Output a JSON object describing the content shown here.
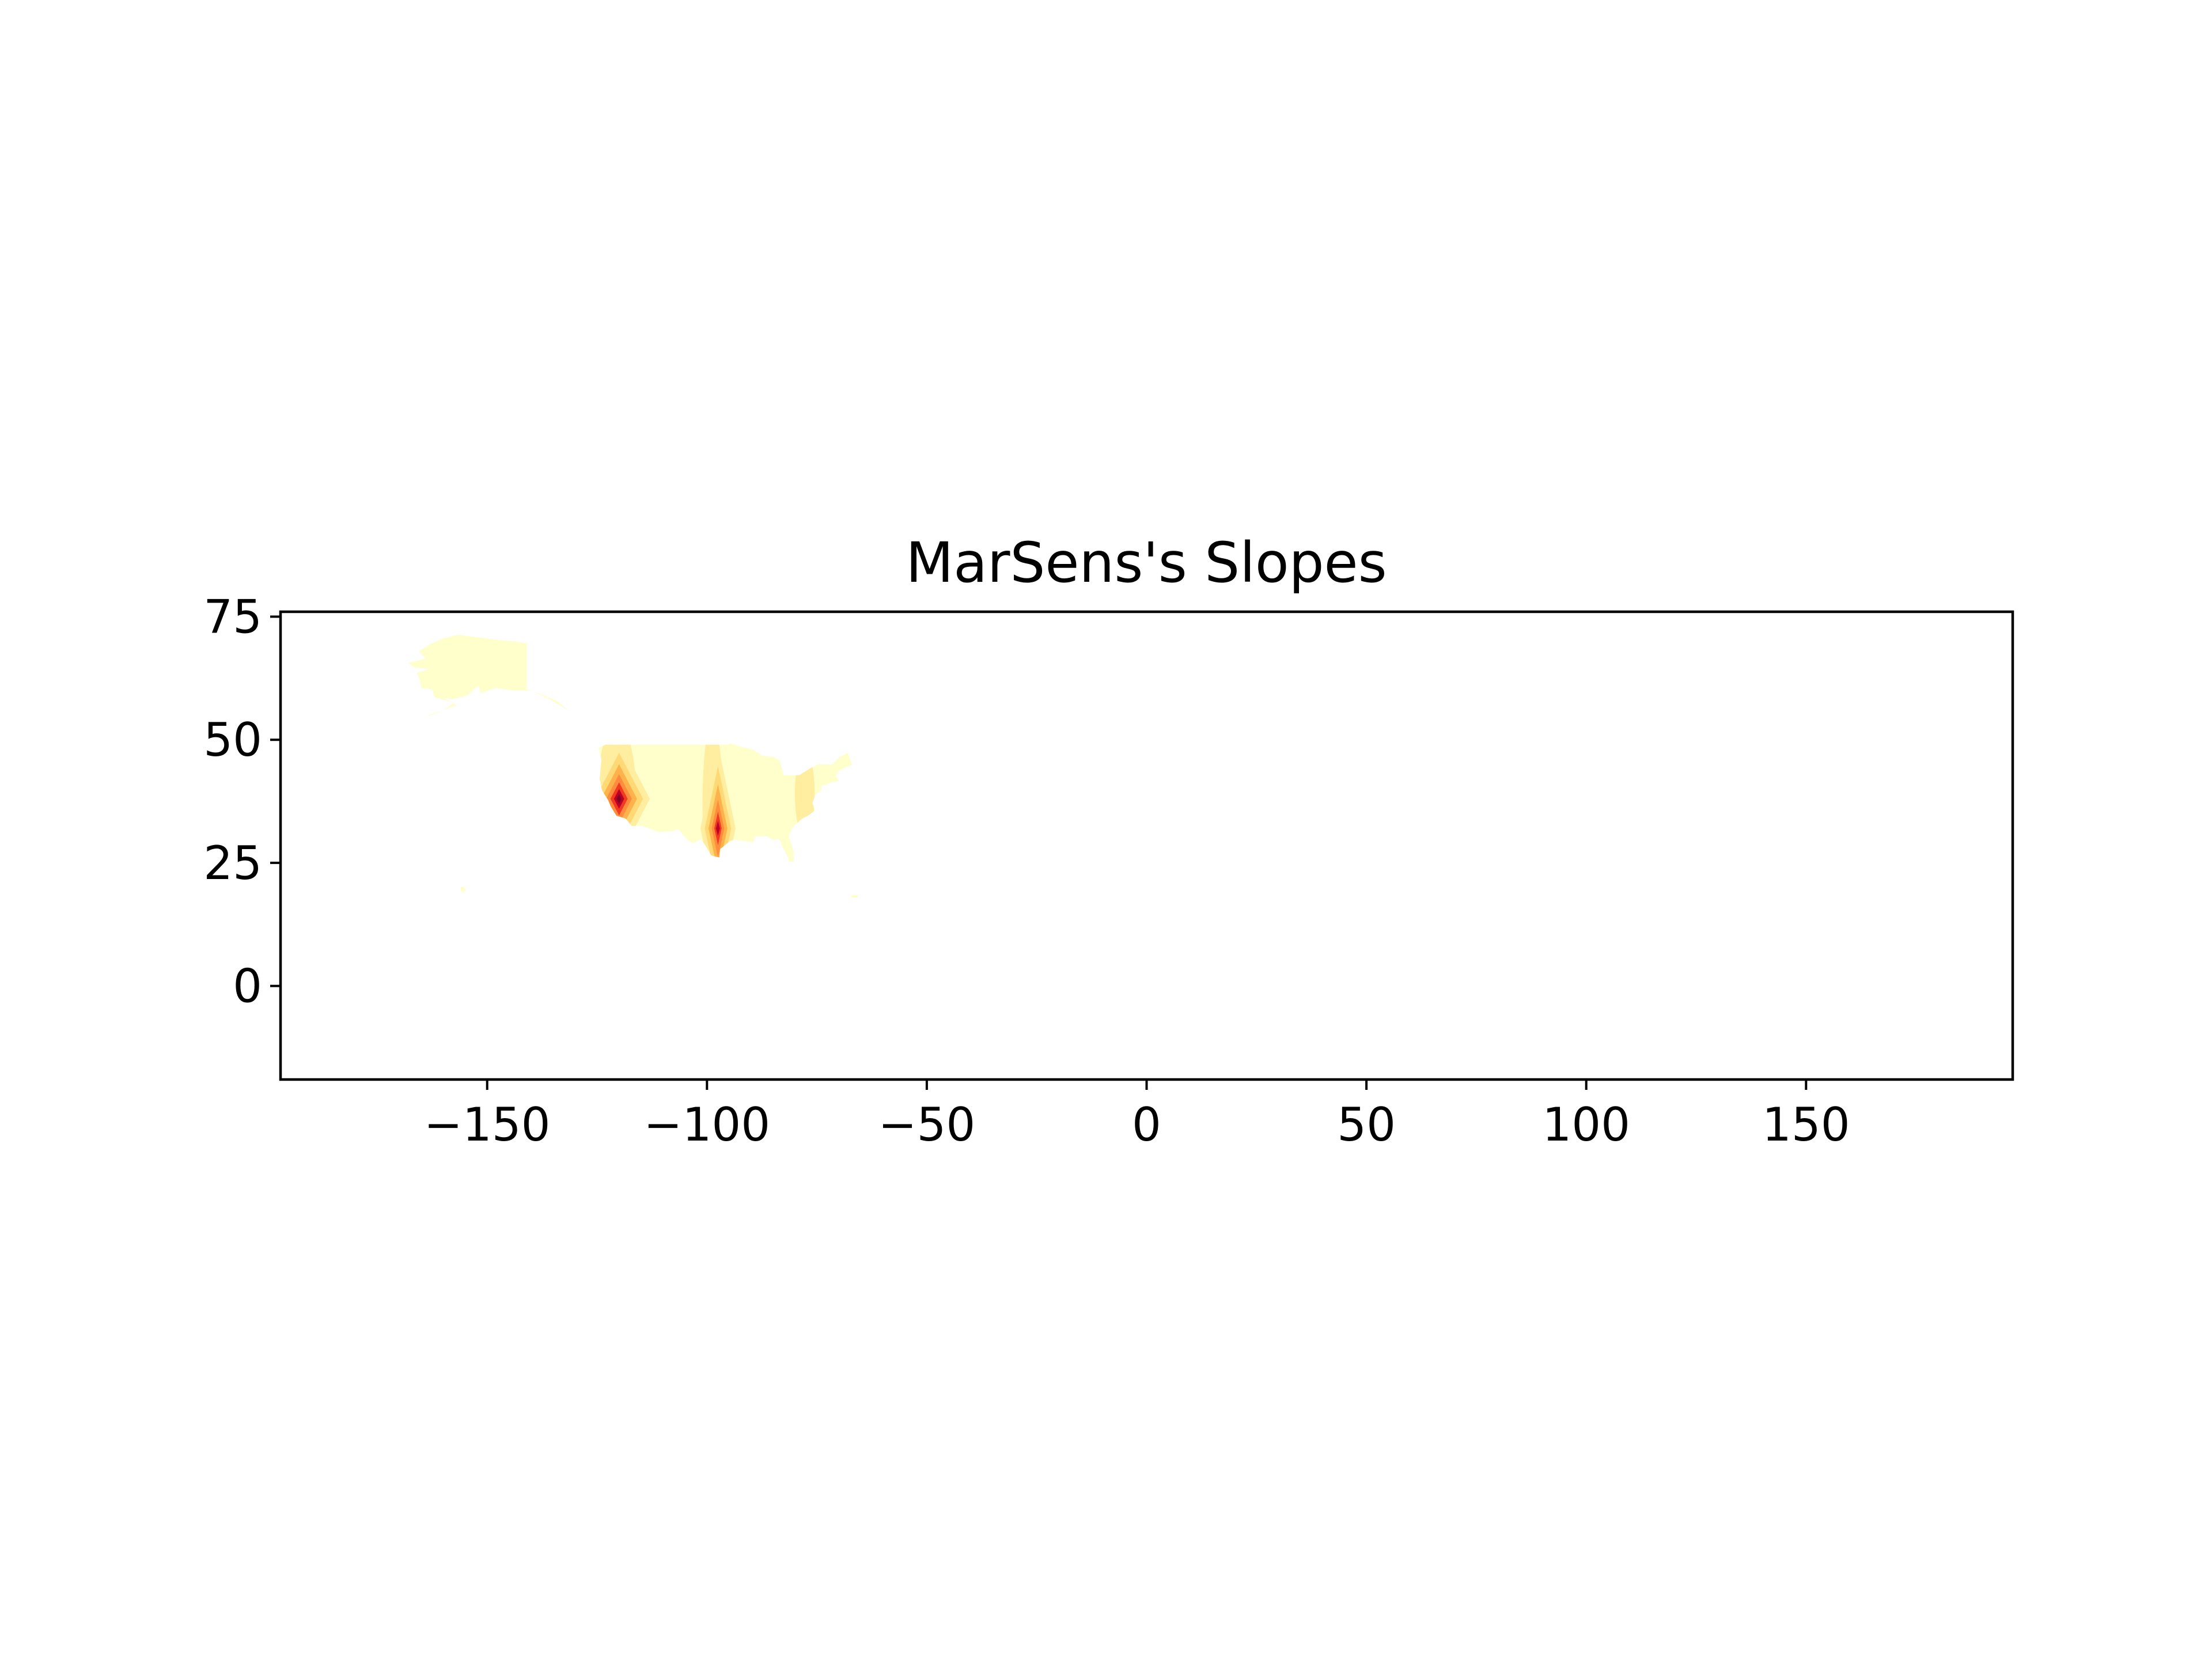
{
  "chart_data": {
    "type": "heatmap",
    "title": "MarSens's Slopes",
    "xlabel": "",
    "ylabel": "",
    "xlim": [
      -197,
      197
    ],
    "ylim": [
      -19,
      76
    ],
    "x_ticks": [
      -150,
      -100,
      -50,
      0,
      50,
      100,
      150
    ],
    "x_tick_labels": [
      "−150",
      "−100",
      "−50",
      "0",
      "50",
      "100",
      "150"
    ],
    "y_ticks": [
      0,
      25,
      50,
      75
    ],
    "y_tick_labels": [
      "0",
      "25",
      "50",
      "75"
    ],
    "grid": false,
    "colormap": "YlOrRd",
    "level_colors": [
      "#ffffcc",
      "#ffeda0",
      "#fed976",
      "#feb24c",
      "#fd8d3c",
      "#f03b20",
      "#bd0026",
      "#800026"
    ],
    "regions": {
      "alaska": {
        "name": "Alaska",
        "level": 0,
        "outline": [
          [
            -141,
            69.6
          ],
          [
            -141,
            60.3
          ],
          [
            -137,
            59
          ],
          [
            -134,
            57.8
          ],
          [
            -131,
            55.6
          ],
          [
            -132.5,
            56.5
          ],
          [
            -136,
            58.3
          ],
          [
            -140,
            60
          ],
          [
            -144,
            60
          ],
          [
            -148,
            60.5
          ],
          [
            -151.5,
            59.5
          ],
          [
            -152,
            61
          ],
          [
            -154.5,
            59
          ],
          [
            -158,
            58.2
          ],
          [
            -160,
            58.6
          ],
          [
            -157,
            57
          ],
          [
            -161,
            55.7
          ],
          [
            -164.5,
            54.6
          ],
          [
            -162,
            55.2
          ],
          [
            -160,
            56
          ],
          [
            -157.5,
            57.5
          ],
          [
            -162,
            58.6
          ],
          [
            -162.5,
            60.2
          ],
          [
            -165,
            60.5
          ],
          [
            -165.2,
            61.7
          ],
          [
            -166,
            63.6
          ],
          [
            -163,
            64.4
          ],
          [
            -166.5,
            64.6
          ],
          [
            -168,
            65.6
          ],
          [
            -164,
            66.5
          ],
          [
            -165.5,
            68
          ],
          [
            -163,
            69.4
          ],
          [
            -160,
            70.6
          ],
          [
            -156.6,
            71.3
          ],
          [
            -152,
            70.8
          ],
          [
            -148,
            70.3
          ],
          [
            -144,
            70
          ]
        ]
      },
      "conus": {
        "name": "Contiguous United States",
        "level": 0,
        "outline": [
          [
            -124.7,
            48.4
          ],
          [
            -123,
            49
          ],
          [
            -95.2,
            49
          ],
          [
            -94.8,
            49.3
          ],
          [
            -92,
            48.5
          ],
          [
            -89.5,
            48
          ],
          [
            -87.5,
            46.8
          ],
          [
            -84.8,
            46.5
          ],
          [
            -83.5,
            45.8
          ],
          [
            -82.5,
            42.8
          ],
          [
            -79,
            42.8
          ],
          [
            -76.5,
            44.2
          ],
          [
            -74.8,
            45
          ],
          [
            -71.5,
            45
          ],
          [
            -70,
            46.4
          ],
          [
            -68,
            47.4
          ],
          [
            -67,
            45
          ],
          [
            -70,
            43.7
          ],
          [
            -70.7,
            42.7
          ],
          [
            -70,
            41.7
          ],
          [
            -71.8,
            41.3
          ],
          [
            -74,
            40.6
          ],
          [
            -74,
            39.6
          ],
          [
            -75.3,
            38.9
          ],
          [
            -76,
            37.2
          ],
          [
            -75.5,
            35.6
          ],
          [
            -77,
            34.6
          ],
          [
            -78.5,
            33.9
          ],
          [
            -80.5,
            32.2
          ],
          [
            -81.4,
            30.5
          ],
          [
            -80.2,
            27
          ],
          [
            -80.3,
            25.3
          ],
          [
            -81.2,
            25.2
          ],
          [
            -81.8,
            26.5
          ],
          [
            -82.8,
            28.2
          ],
          [
            -83.5,
            29.8
          ],
          [
            -85,
            29.7
          ],
          [
            -86.5,
            30.4
          ],
          [
            -89,
            30.4
          ],
          [
            -89.5,
            29.2
          ],
          [
            -91.5,
            29.4
          ],
          [
            -93.8,
            29.7
          ],
          [
            -94.8,
            29.4
          ],
          [
            -97,
            27.8
          ],
          [
            -97.2,
            26.1
          ],
          [
            -99,
            26.5
          ],
          [
            -100.6,
            28.9
          ],
          [
            -101.5,
            29.8
          ],
          [
            -103,
            29
          ],
          [
            -104.4,
            29.6
          ],
          [
            -106.5,
            31.8
          ],
          [
            -108.2,
            31.4
          ],
          [
            -111,
            31.3
          ],
          [
            -114.8,
            32.5
          ],
          [
            -117.1,
            32.5
          ],
          [
            -118.5,
            34
          ],
          [
            -120.6,
            34.6
          ],
          [
            -121.9,
            36.5
          ],
          [
            -122.5,
            37.8
          ],
          [
            -123.8,
            39.6
          ],
          [
            -124.4,
            42
          ],
          [
            -124,
            46
          ],
          [
            -124.7,
            48.4
          ]
        ]
      },
      "hawaii": {
        "name": "Hawaii",
        "level": 0,
        "outline": [
          [
            -155.9,
            20.2
          ],
          [
            -155.2,
            19.9
          ],
          [
            -154.8,
            19.5
          ],
          [
            -155.6,
            18.9
          ],
          [
            -156.1,
            19.6
          ],
          [
            -155.9,
            20.2
          ]
        ]
      },
      "puerto_rico": {
        "name": "Puerto Rico",
        "level": 0,
        "outline": [
          [
            -67.3,
            18.5
          ],
          [
            -65.6,
            18.4
          ],
          [
            -65.7,
            18
          ],
          [
            -67.2,
            18
          ],
          [
            -67.3,
            18.5
          ]
        ]
      }
    },
    "hotspots": [
      {
        "lon": -120,
        "lat": 38,
        "halfwidth": [
          7,
          2.6
        ],
        "halfheight": [
          12,
          4.5
        ],
        "peak_level": 7
      },
      {
        "lon": -97.5,
        "lat": 32,
        "halfwidth": [
          4,
          1.8
        ],
        "halfheight": [
          17,
          7
        ],
        "peak_level": 6
      }
    ],
    "bands": [
      {
        "lon_min": -125,
        "lon_max": -116,
        "lat_min": 25,
        "lat_max": 49,
        "level": 1
      },
      {
        "lon_min": -101,
        "lon_max": -96.5,
        "lat_min": 25,
        "lat_max": 49,
        "level": 1
      },
      {
        "lon_min": -80,
        "lon_max": -75.5,
        "lat_min": 35,
        "lat_max": 43,
        "level": 1
      }
    ]
  }
}
